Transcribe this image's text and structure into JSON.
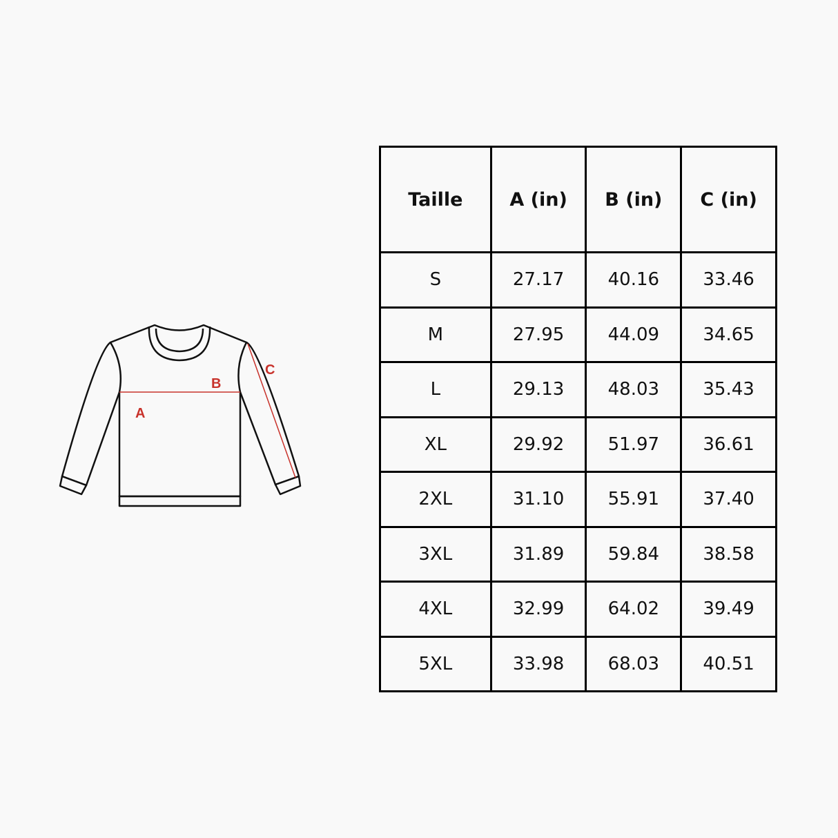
{
  "diagram": {
    "labels": {
      "a": "A",
      "b": "B",
      "c": "C"
    },
    "colors": {
      "outline": "#111111",
      "measure": "#c8322b"
    }
  },
  "table": {
    "headers": [
      "Taille",
      "A (in)",
      "B (in)",
      "C (in)"
    ],
    "rows": [
      [
        "S",
        "27.17",
        "40.16",
        "33.46"
      ],
      [
        "M",
        "27.95",
        "44.09",
        "34.65"
      ],
      [
        "L",
        "29.13",
        "48.03",
        "35.43"
      ],
      [
        "XL",
        "29.92",
        "51.97",
        "36.61"
      ],
      [
        "2XL",
        "31.10",
        "55.91",
        "37.40"
      ],
      [
        "3XL",
        "31.89",
        "59.84",
        "38.58"
      ],
      [
        "4XL",
        "32.99",
        "64.02",
        "39.49"
      ],
      [
        "5XL",
        "33.98",
        "68.03",
        "40.51"
      ]
    ]
  }
}
